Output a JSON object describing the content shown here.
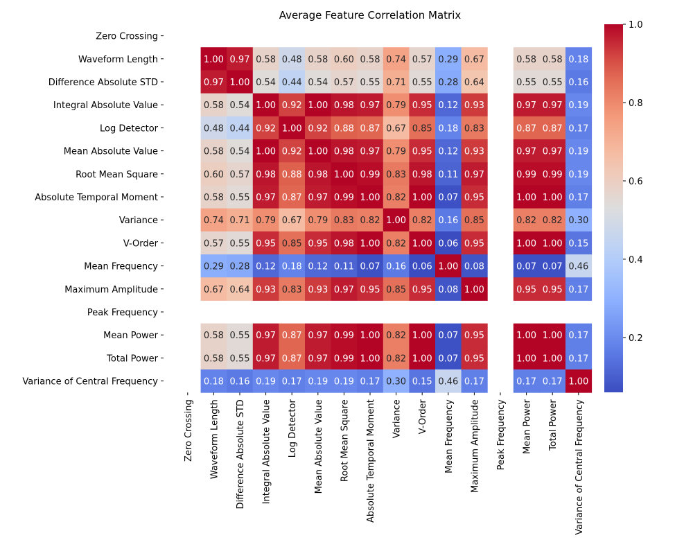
{
  "chart_data": {
    "type": "heatmap",
    "title": "Average Feature Correlation Matrix",
    "colormap": "coolwarm",
    "colors": {
      "low": "#3b4cc0",
      "mid": "#dddddd",
      "high": "#b40426",
      "text_light": "#ffffff",
      "text_dark": "#262626"
    },
    "labels": [
      "Zero Crossing",
      "Waveform Length",
      "Difference Absolute STD",
      "Integral Absolute Value",
      "Log Detector",
      "Mean Absolute Value",
      "Root Mean Square",
      "Absolute Temporal Moment",
      "Variance",
      "V-Order",
      "Mean Frequency",
      "Maximum Amplitude",
      "Peak Frequency",
      "Mean Power",
      "Total Power",
      "Variance of Central Frequency"
    ],
    "values": [
      [
        null,
        null,
        null,
        null,
        null,
        null,
        null,
        null,
        null,
        null,
        null,
        null,
        null,
        null,
        null,
        null
      ],
      [
        null,
        1.0,
        0.97,
        0.58,
        0.48,
        0.58,
        0.6,
        0.58,
        0.74,
        0.57,
        0.29,
        0.67,
        null,
        0.58,
        0.58,
        0.18
      ],
      [
        null,
        0.97,
        1.0,
        0.54,
        0.44,
        0.54,
        0.57,
        0.55,
        0.71,
        0.55,
        0.28,
        0.64,
        null,
        0.55,
        0.55,
        0.16
      ],
      [
        null,
        0.58,
        0.54,
        1.0,
        0.92,
        1.0,
        0.98,
        0.97,
        0.79,
        0.95,
        0.12,
        0.93,
        null,
        0.97,
        0.97,
        0.19
      ],
      [
        null,
        0.48,
        0.44,
        0.92,
        1.0,
        0.92,
        0.88,
        0.87,
        0.67,
        0.85,
        0.18,
        0.83,
        null,
        0.87,
        0.87,
        0.17
      ],
      [
        null,
        0.58,
        0.54,
        1.0,
        0.92,
        1.0,
        0.98,
        0.97,
        0.79,
        0.95,
        0.12,
        0.93,
        null,
        0.97,
        0.97,
        0.19
      ],
      [
        null,
        0.6,
        0.57,
        0.98,
        0.88,
        0.98,
        1.0,
        0.99,
        0.83,
        0.98,
        0.11,
        0.97,
        null,
        0.99,
        0.99,
        0.19
      ],
      [
        null,
        0.58,
        0.55,
        0.97,
        0.87,
        0.97,
        0.99,
        1.0,
        0.82,
        1.0,
        0.07,
        0.95,
        null,
        1.0,
        1.0,
        0.17
      ],
      [
        null,
        0.74,
        0.71,
        0.79,
        0.67,
        0.79,
        0.83,
        0.82,
        1.0,
        0.82,
        0.16,
        0.85,
        null,
        0.82,
        0.82,
        0.3
      ],
      [
        null,
        0.57,
        0.55,
        0.95,
        0.85,
        0.95,
        0.98,
        1.0,
        0.82,
        1.0,
        0.06,
        0.95,
        null,
        1.0,
        1.0,
        0.15
      ],
      [
        null,
        0.29,
        0.28,
        0.12,
        0.18,
        0.12,
        0.11,
        0.07,
        0.16,
        0.06,
        1.0,
        0.08,
        null,
        0.07,
        0.07,
        0.46
      ],
      [
        null,
        0.67,
        0.64,
        0.93,
        0.83,
        0.93,
        0.97,
        0.95,
        0.85,
        0.95,
        0.08,
        1.0,
        null,
        0.95,
        0.95,
        0.17
      ],
      [
        null,
        null,
        null,
        null,
        null,
        null,
        null,
        null,
        null,
        null,
        null,
        null,
        null,
        null,
        null,
        null
      ],
      [
        null,
        0.58,
        0.55,
        0.97,
        0.87,
        0.97,
        0.99,
        1.0,
        0.82,
        1.0,
        0.07,
        0.95,
        null,
        1.0,
        1.0,
        0.17
      ],
      [
        null,
        0.58,
        0.55,
        0.97,
        0.87,
        0.97,
        0.99,
        1.0,
        0.82,
        1.0,
        0.07,
        0.95,
        null,
        1.0,
        1.0,
        0.17
      ],
      [
        null,
        0.18,
        0.16,
        0.19,
        0.17,
        0.19,
        0.19,
        0.17,
        0.3,
        0.15,
        0.46,
        0.17,
        null,
        0.17,
        0.17,
        1.0
      ]
    ],
    "vmin": 0.06,
    "vmax": 1.0,
    "colorbar": {
      "ticks": [
        0.2,
        0.4,
        0.6,
        0.8,
        1.0
      ],
      "tick_labels": [
        "0.2",
        "0.4",
        "0.6",
        "0.8",
        "1.0"
      ]
    },
    "annotations": true,
    "number_format": "2 decimals"
  }
}
